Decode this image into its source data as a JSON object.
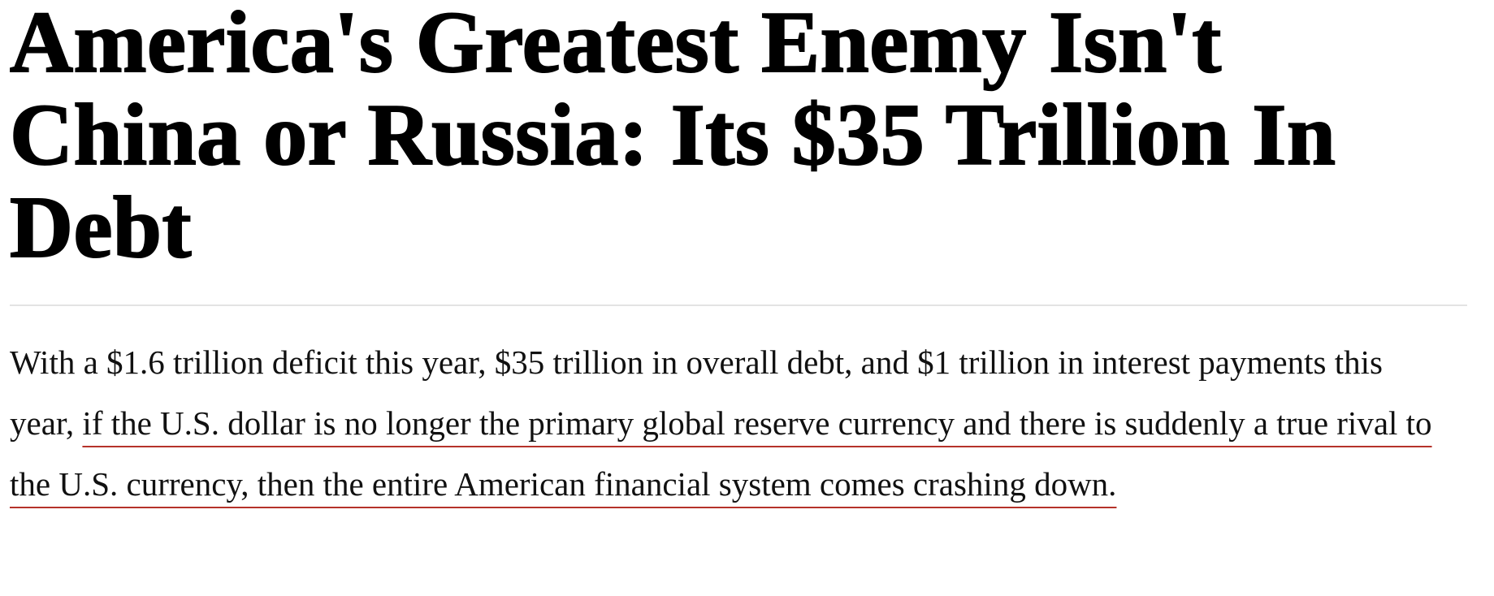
{
  "article": {
    "headline": "America's Greatest Enemy Isn't China or Russia: Its $35 Trillion In Debt",
    "dek_plain": "With a $1.6 trillion deficit this year, $35 trillion in overall debt, and $1 trillion in interest payments this year, ",
    "dek_highlighted": "if the U.S. dollar is no longer the primary global reserve currency and there is suddenly a true rival to the U.S. currency, then the entire American financial system comes crashing down.",
    "highlight_color": "#b5322a"
  }
}
